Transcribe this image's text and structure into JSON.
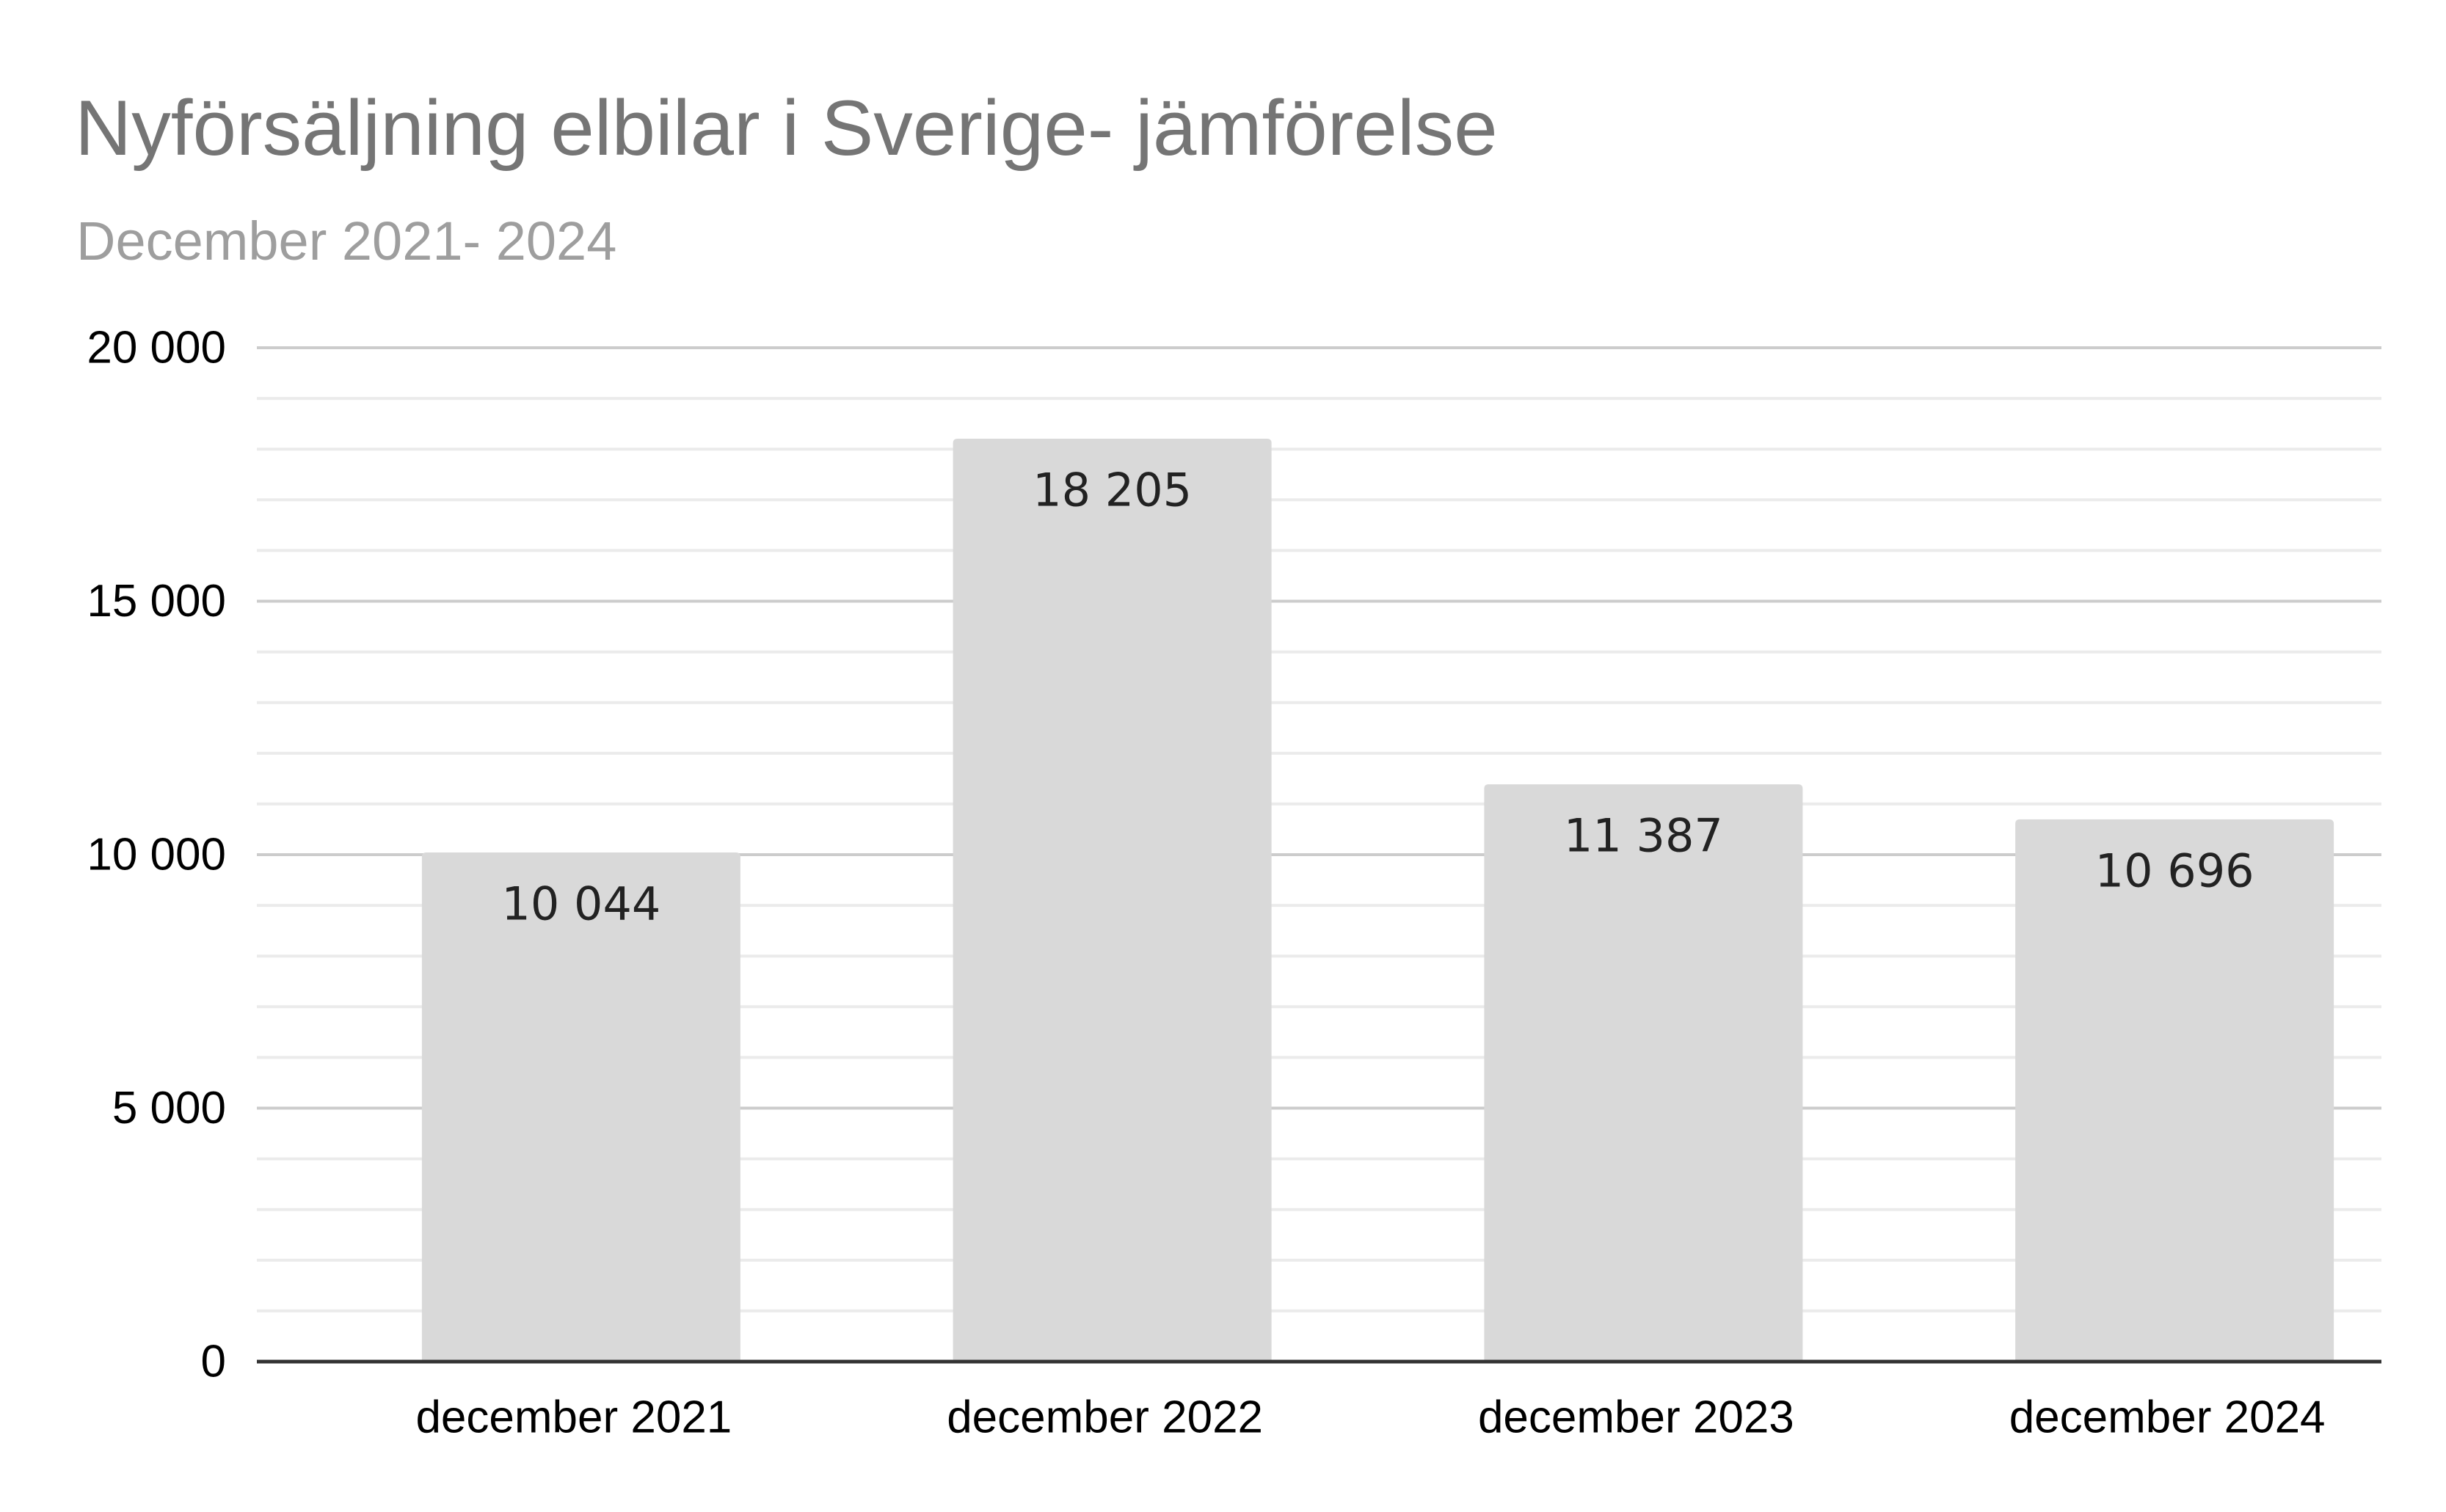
{
  "chart_data": {
    "type": "bar",
    "title": "Nyförsäljning elbilar i Sverige- jämförelse",
    "subtitle": "December 2021- 2024",
    "xlabel": "",
    "ylabel": "",
    "categories": [
      "december 2021",
      "december 2022",
      "december 2023",
      "december 2024"
    ],
    "values": [
      10044,
      18205,
      11387,
      10696
    ],
    "value_labels": [
      "10 044",
      "18 205",
      "11 387",
      "10 696"
    ],
    "ylim": [
      0,
      20000
    ],
    "y_ticks": [
      0,
      5000,
      10000,
      15000,
      20000
    ],
    "y_tick_labels": [
      "0",
      "5 000",
      "10 000",
      "15 000",
      "20 000"
    ],
    "minor_gridlines_per_major": 4,
    "grid": true,
    "legend": "none",
    "colors": {
      "bar": "#d9d9d9",
      "major_grid": "#cccccc",
      "minor_grid": "#ebebeb",
      "axis": "#333333",
      "title": "#757575",
      "subtitle": "#9e9e9e"
    }
  }
}
